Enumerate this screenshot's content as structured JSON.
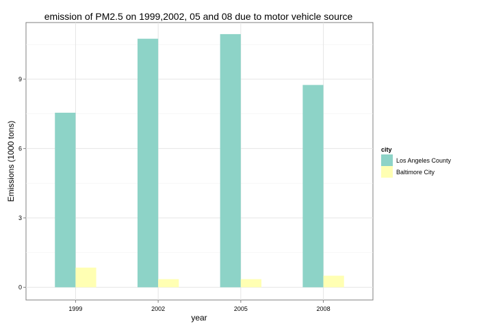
{
  "chart_data": {
    "type": "bar",
    "title": "emission of PM2.5 on 1999,2002, 05 and 08 due to motor vehicle source",
    "xlabel": "year",
    "ylabel": "Emissions (1000 tons)",
    "categories": [
      "1999",
      "2002",
      "2005",
      "2008"
    ],
    "ylim": [
      -0.55,
      11.45
    ],
    "yticks": [
      0,
      3,
      6,
      9
    ],
    "grid": true,
    "legend": {
      "title": "city",
      "placement": "right"
    },
    "series": [
      {
        "name": "Los Angeles County",
        "color": "#8dd3c7",
        "values": [
          7.55,
          10.75,
          10.95,
          8.75
        ]
      },
      {
        "name": "Baltimore City",
        "color": "#ffffb3",
        "values": [
          0.85,
          0.35,
          0.35,
          0.5
        ]
      }
    ]
  }
}
